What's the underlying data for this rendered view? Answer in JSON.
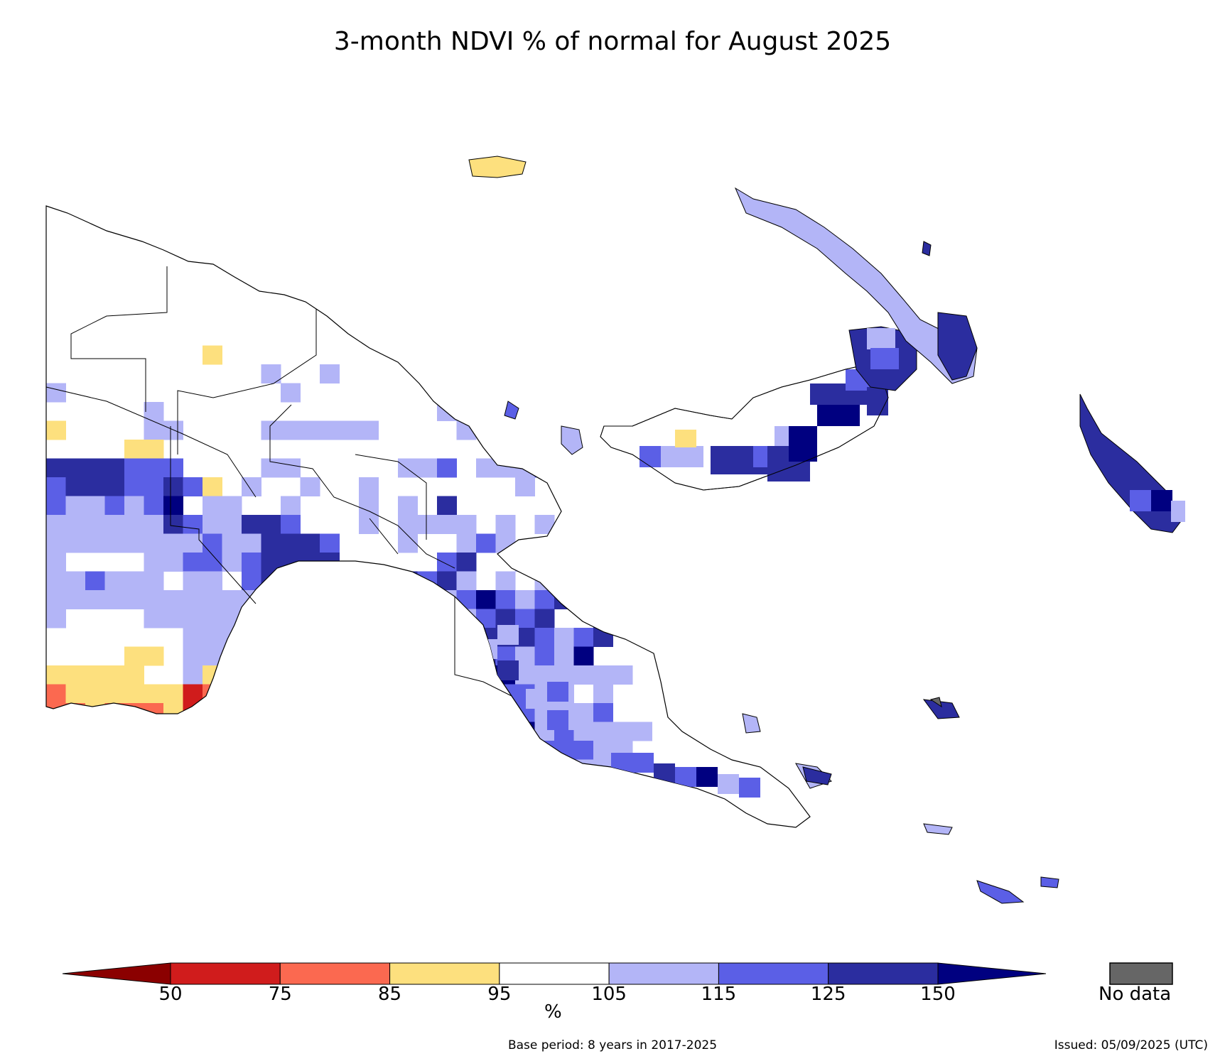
{
  "title": "3-month NDVI % of normal for August 2025",
  "legend": {
    "ticks": [
      "50",
      "75",
      "85",
      "95",
      "105",
      "115",
      "125",
      "150"
    ],
    "unit": "%",
    "colors": [
      "#8b0000",
      "#d01c1c",
      "#fb6950",
      "#fde07e",
      "#ffffff",
      "#b3b5f7",
      "#5b5fe6",
      "#2b2d9f",
      "#000080"
    ],
    "nodata_label": "No data",
    "nodata_color": "#666666"
  },
  "footer": {
    "base_period": "Base period: 8 years in 2017-2025",
    "issued": "Issued: 05/09/2025 (UTC)"
  }
}
